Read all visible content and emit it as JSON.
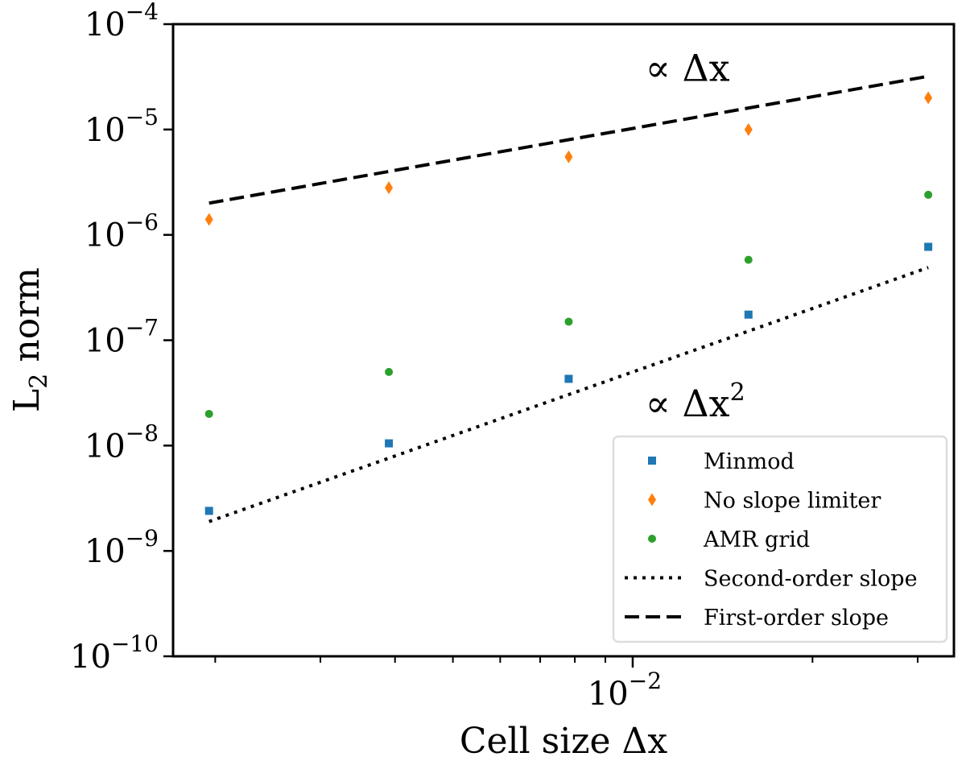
{
  "chart_data": {
    "type": "scatter",
    "title": "",
    "xlabel": "Cell size Δx",
    "ylabel_main": "L",
    "ylabel_sub": "2",
    "ylabel_rest": " norm",
    "xscale": "log",
    "yscale": "log",
    "xlim": [
      0.0017,
      0.0345
    ],
    "ylim": [
      1e-10,
      0.0001
    ],
    "grid": false,
    "x_major_ticks": [
      {
        "value": 0.01,
        "base": "10",
        "exp": "−2"
      }
    ],
    "x_minor_ticks": [
      0.002,
      0.003,
      0.004,
      0.005,
      0.006,
      0.007,
      0.008,
      0.009,
      0.02,
      0.03
    ],
    "y_ticks": [
      {
        "value": 1e-10,
        "base": "10",
        "exp": "−10"
      },
      {
        "value": 1e-09,
        "base": "10",
        "exp": "−9"
      },
      {
        "value": 1e-08,
        "base": "10",
        "exp": "−8"
      },
      {
        "value": 1e-07,
        "base": "10",
        "exp": "−7"
      },
      {
        "value": 1e-06,
        "base": "10",
        "exp": "−6"
      },
      {
        "value": 1e-05,
        "base": "10",
        "exp": "−5"
      },
      {
        "value": 0.0001,
        "base": "10",
        "exp": "−4"
      }
    ],
    "x": [
      0.001953,
      0.003906,
      0.0078125,
      0.015625,
      0.03125
    ],
    "series": [
      {
        "name": "Minmod",
        "marker": "square",
        "color": "#1f77b4",
        "values": [
          2.4e-09,
          1.05e-08,
          4.3e-08,
          1.75e-07,
          7.7e-07
        ]
      },
      {
        "name": "No slope limiter",
        "marker": "diamond",
        "color": "#ff7f0e",
        "values": [
          1.4e-06,
          2.8e-06,
          5.5e-06,
          1e-05,
          2e-05
        ]
      },
      {
        "name": "AMR grid",
        "marker": "circle",
        "color": "#2ca02c",
        "values": [
          2e-08,
          5e-08,
          1.5e-07,
          5.8e-07,
          2.4e-06
        ]
      },
      {
        "name": "Second-order slope",
        "line": "dotted",
        "color": "#000000",
        "values": [
          1.9e-09,
          7.6e-09,
          3.05e-08,
          1.22e-07,
          4.9e-07
        ]
      },
      {
        "name": "First-order slope",
        "line": "dashed",
        "color": "#000000",
        "values": [
          2e-06,
          4e-06,
          8e-06,
          1.6e-05,
          3.2e-05
        ]
      }
    ],
    "annotations": [
      {
        "text": "∝ Δx",
        "sup": "",
        "x": 0.0105,
        "y": 2.9e-05
      },
      {
        "text": "∝ Δx",
        "sup": "2",
        "x": 0.0105,
        "y": 1.9e-08
      }
    ],
    "legend_placement": "lower-right"
  }
}
